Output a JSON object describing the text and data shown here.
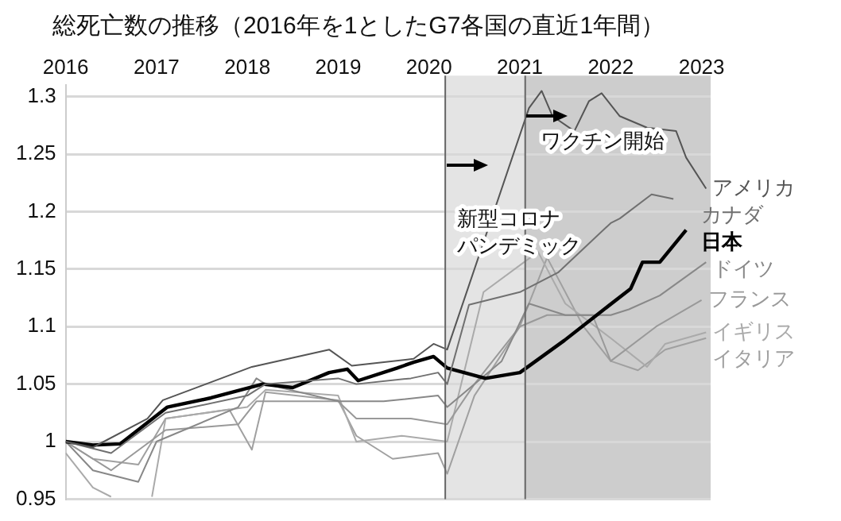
{
  "chart_data": {
    "type": "line",
    "title": "総死亡数の推移（2016年を1としたG7各国の直近1年間）",
    "xlim": [
      2016,
      2023.1
    ],
    "xticks": [
      2016,
      2017,
      2018,
      2019,
      2020,
      2021,
      2022,
      2023
    ],
    "ylim": [
      0.95,
      1.31
    ],
    "yticks": [
      0.95,
      1,
      1.05,
      1.1,
      1.15,
      1.2,
      1.25,
      1.3
    ],
    "grid": "y",
    "ref_lines": [
      {
        "axis": "x",
        "value": 2020.17,
        "color": "#666666"
      },
      {
        "axis": "x",
        "value": 2021.05,
        "color": "#666666"
      }
    ],
    "legend": false,
    "marker": "none",
    "line_style": "solid",
    "bands": [
      {
        "axis": "x",
        "from": 2020.17,
        "to": 2021.05,
        "label": "新型コロナパンデミック",
        "color": "#e4e4e4"
      },
      {
        "axis": "x",
        "from": 2021.05,
        "to": 2023.1,
        "label": "ワクチン開始",
        "color": "#cdcdcd"
      }
    ],
    "series": [
      {
        "name": "アメリカ",
        "color": "#555555",
        "x": [
          2016,
          2016.3,
          2016.9,
          2017.07,
          2018.05,
          2018.9,
          2019.15,
          2019.83,
          2020.05,
          2020.2,
          2021.1,
          2021.24,
          2021.36,
          2021.6,
          2021.76,
          2021.9,
          2022.1,
          2022.4,
          2022.72,
          2022.83,
          2023.05
        ],
        "values": [
          1,
          0.995,
          1.02,
          1.036,
          1.065,
          1.08,
          1.066,
          1.072,
          1.085,
          1.08,
          1.29,
          1.305,
          1.283,
          1.27,
          1.296,
          1.303,
          1.283,
          1.273,
          1.27,
          1.247,
          1.22
        ]
      },
      {
        "name": "カナダ",
        "color": "#707070",
        "x": [
          2016,
          2016.5,
          2017.1,
          2018,
          2018.2,
          2019,
          2019.2,
          2019.8,
          2020.1,
          2020.2,
          2020.44,
          2021,
          2021.42,
          2022,
          2022.1,
          2022.45,
          2022.69
        ],
        "values": [
          1,
          0.99,
          1.025,
          1.04,
          1.05,
          1.055,
          1.05,
          1.055,
          1.06,
          1.05,
          1.119,
          1.13,
          1.147,
          1.19,
          1.194,
          1.215,
          1.211
        ]
      },
      {
        "name": "日本",
        "color": "#000000",
        "x": [
          2016,
          2016.3,
          2016.6,
          2017.12,
          2017.6,
          2018.17,
          2018.5,
          2018.9,
          2019.1,
          2019.22,
          2019.65,
          2019.83,
          2020.05,
          2020.2,
          2020.62,
          2021,
          2021.49,
          2021.91,
          2022.22,
          2022.35,
          2022.54,
          2022.83
        ],
        "values": [
          1,
          0.997,
          0.998,
          1.03,
          1.038,
          1.05,
          1.047,
          1.06,
          1.063,
          1.053,
          1.064,
          1.069,
          1.074,
          1.064,
          1.055,
          1.06,
          1.088,
          1.114,
          1.133,
          1.156,
          1.156,
          1.184
        ]
      },
      {
        "name": "ドイツ",
        "color": "#888888",
        "x": [
          2016,
          2016.3,
          2016.8,
          2017,
          2017.9,
          2018.1,
          2018.2,
          2019,
          2019.5,
          2020.1,
          2020.2,
          2020.8,
          2021.1,
          2021.5,
          2022,
          2022.2,
          2022.54,
          2023.05
        ],
        "values": [
          1,
          0.975,
          0.965,
          1.0,
          1.03,
          1.055,
          1.05,
          1.035,
          1.035,
          1.04,
          1.03,
          1.07,
          1.12,
          1.11,
          1.11,
          1.115,
          1.127,
          1.156
        ]
      },
      {
        "name": "フランス",
        "color": "#999999",
        "x": [
          2016,
          2016.5,
          2017.1,
          2017.9,
          2018.1,
          2019,
          2019.2,
          2019.8,
          2020.2,
          2020.5,
          2021,
          2021.3,
          2021.8,
          2022,
          2022.5,
          2023
        ],
        "values": [
          1,
          0.975,
          1.01,
          1.015,
          1.035,
          1.035,
          1.02,
          1.02,
          1.015,
          1.05,
          1.1,
          1.11,
          1.11,
          1.07,
          1.1,
          1.123
        ]
      },
      {
        "name": "イギリス",
        "color": "#aaaaaa",
        "x": [
          2016,
          2016.3,
          2016.5,
          2016.7,
          2016.95,
          2017.1,
          2018,
          2018.2,
          2019,
          2019.2,
          2019.7,
          2020.2,
          2020.6,
          2021.2,
          2021.5,
          2022,
          2022.4,
          2022.6,
          2023.05
        ],
        "values": [
          0.99,
          0.96,
          0.952,
          null,
          0.952,
          1.02,
          1.03,
          1.045,
          1.04,
          1.0,
          1.005,
          1.0,
          1.13,
          1.165,
          1.12,
          1.09,
          1.065,
          1.085,
          1.095
        ]
      },
      {
        "name": "イタリア",
        "color": "#a0a0a0",
        "x": [
          2016,
          2016.3,
          2016.8,
          2017.1,
          2017.8,
          2018.05,
          2018.2,
          2019,
          2019.2,
          2019.6,
          2020.1,
          2020.2,
          2020.5,
          2021,
          2021.3,
          2021.7,
          2022,
          2022.3,
          2022.6,
          2023.05
        ],
        "values": [
          1,
          0.985,
          0.98,
          1.02,
          1.028,
          0.993,
          1.043,
          1.036,
          1.005,
          0.985,
          0.99,
          0.972,
          1.04,
          1.1,
          1.16,
          1.1,
          1.07,
          1.062,
          1.08,
          1.09
        ]
      }
    ]
  }
}
